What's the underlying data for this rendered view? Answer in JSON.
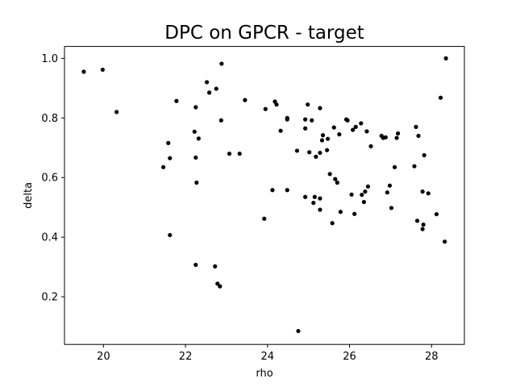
{
  "chart_data": {
    "type": "scatter",
    "title": "DPC on GPCR - target",
    "xlabel": "rho",
    "ylabel": "delta",
    "xlim": [
      19.05,
      28.8
    ],
    "ylim": [
      0.04,
      1.04
    ],
    "xticks": [
      20,
      22,
      24,
      26,
      28
    ],
    "yticks": [
      0.2,
      0.4,
      0.6,
      0.8,
      1.0
    ],
    "xtick_labels": [
      "20",
      "22",
      "24",
      "26",
      "28"
    ],
    "ytick_labels": [
      "0.2",
      "0.4",
      "0.6",
      "0.8",
      "1.0"
    ],
    "grid": false,
    "legend": "none",
    "marker_color": "#000000",
    "points": [
      [
        19.52,
        0.955
      ],
      [
        19.98,
        0.962
      ],
      [
        20.32,
        0.82
      ],
      [
        21.46,
        0.635
      ],
      [
        21.58,
        0.716
      ],
      [
        21.62,
        0.665
      ],
      [
        21.62,
        0.407
      ],
      [
        21.78,
        0.857
      ],
      [
        22.22,
        0.754
      ],
      [
        22.25,
        0.836
      ],
      [
        22.25,
        0.667
      ],
      [
        22.27,
        0.583
      ],
      [
        22.32,
        0.731
      ],
      [
        22.25,
        0.307
      ],
      [
        22.52,
        0.92
      ],
      [
        22.58,
        0.885
      ],
      [
        22.75,
        0.898
      ],
      [
        22.72,
        0.302
      ],
      [
        22.78,
        0.244
      ],
      [
        22.84,
        0.235
      ],
      [
        22.88,
        0.982
      ],
      [
        22.87,
        0.792
      ],
      [
        23.07,
        0.68
      ],
      [
        23.32,
        0.68
      ],
      [
        23.45,
        0.86
      ],
      [
        23.92,
        0.462
      ],
      [
        23.95,
        0.83
      ],
      [
        24.12,
        0.558
      ],
      [
        24.18,
        0.855
      ],
      [
        24.22,
        0.845
      ],
      [
        24.32,
        0.757
      ],
      [
        24.48,
        0.8
      ],
      [
        24.48,
        0.795
      ],
      [
        24.48,
        0.558
      ],
      [
        24.72,
        0.69
      ],
      [
        24.75,
        0.085
      ],
      [
        24.92,
        0.795
      ],
      [
        24.92,
        0.765
      ],
      [
        24.92,
        0.535
      ],
      [
        24.98,
        0.845
      ],
      [
        25.02,
        0.685
      ],
      [
        25.08,
        0.792
      ],
      [
        25.12,
        0.515
      ],
      [
        25.15,
        0.535
      ],
      [
        25.18,
        0.67
      ],
      [
        25.28,
        0.833
      ],
      [
        25.28,
        0.683
      ],
      [
        25.28,
        0.53
      ],
      [
        25.28,
        0.492
      ],
      [
        25.33,
        0.725
      ],
      [
        25.35,
        0.742
      ],
      [
        25.45,
        0.692
      ],
      [
        25.47,
        0.73
      ],
      [
        25.52,
        0.612
      ],
      [
        25.58,
        0.447
      ],
      [
        25.62,
        0.768
      ],
      [
        25.65,
        0.595
      ],
      [
        25.7,
        0.583
      ],
      [
        25.78,
        0.485
      ],
      [
        25.75,
        0.745
      ],
      [
        25.92,
        0.795
      ],
      [
        25.95,
        0.792
      ],
      [
        26.05,
        0.543
      ],
      [
        26.08,
        0.76
      ],
      [
        26.12,
        0.478
      ],
      [
        26.15,
        0.77
      ],
      [
        26.28,
        0.782
      ],
      [
        26.3,
        0.542
      ],
      [
        26.35,
        0.518
      ],
      [
        26.38,
        0.553
      ],
      [
        26.42,
        0.755
      ],
      [
        26.45,
        0.57
      ],
      [
        26.52,
        0.705
      ],
      [
        26.78,
        0.74
      ],
      [
        26.82,
        0.733
      ],
      [
        26.88,
        0.735
      ],
      [
        26.92,
        0.55
      ],
      [
        26.98,
        0.573
      ],
      [
        27.02,
        0.498
      ],
      [
        27.1,
        0.635
      ],
      [
        27.15,
        0.733
      ],
      [
        27.18,
        0.748
      ],
      [
        27.58,
        0.638
      ],
      [
        27.62,
        0.77
      ],
      [
        27.65,
        0.455
      ],
      [
        27.68,
        0.74
      ],
      [
        27.78,
        0.553
      ],
      [
        27.78,
        0.427
      ],
      [
        27.8,
        0.442
      ],
      [
        27.82,
        0.675
      ],
      [
        27.92,
        0.547
      ],
      [
        28.12,
        0.477
      ],
      [
        28.22,
        0.868
      ],
      [
        28.32,
        0.385
      ],
      [
        28.35,
        1.0
      ]
    ]
  }
}
